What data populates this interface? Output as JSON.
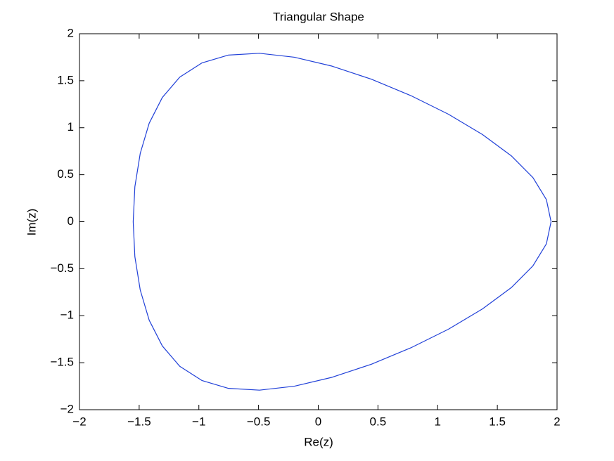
{
  "chart_data": {
    "type": "line",
    "title": "Triangular Shape",
    "x_label": "Re(z)",
    "y_label": "Im(z)",
    "x": [
      1.95,
      1.911,
      1.798,
      1.616,
      1.375,
      1.09,
      0.775,
      0.445,
      0.116,
      -0.2,
      -0.492,
      -0.752,
      -0.975,
      -1.16,
      -1.306,
      -1.416,
      -1.491,
      -1.536,
      -1.55,
      -1.536,
      -1.491,
      -1.416,
      -1.306,
      -1.16,
      -0.975,
      -0.752,
      -0.492,
      -0.2,
      0.116,
      0.445,
      0.775,
      1.09,
      1.375,
      1.616,
      1.798,
      1.911,
      1.95
    ],
    "series": [
      {
        "color": "#2040d8",
        "values": [
          0,
          0.235,
          0.47,
          0.702,
          0.928,
          1.144,
          1.342,
          1.516,
          1.655,
          1.75,
          1.792,
          1.773,
          1.689,
          1.538,
          1.322,
          1.048,
          0.727,
          0.372,
          0,
          -0.372,
          -0.727,
          -1.048,
          -1.322,
          -1.538,
          -1.689,
          -1.773,
          -1.792,
          -1.75,
          -1.655,
          -1.516,
          -1.342,
          -1.144,
          -0.928,
          -0.702,
          -0.47,
          -0.235,
          0
        ]
      }
    ],
    "xlim": [
      -2,
      2
    ],
    "ylim": [
      -2,
      2
    ],
    "xticks": [
      {
        "value": -2,
        "label": "−2"
      },
      {
        "value": -1.5,
        "label": "−1.5"
      },
      {
        "value": -1,
        "label": "−1"
      },
      {
        "value": -0.5,
        "label": "−0.5"
      },
      0,
      0.5,
      1,
      1.5,
      2
    ],
    "yticks": [
      {
        "value": -2,
        "label": "−2"
      },
      {
        "value": -1.5,
        "label": "−1.5"
      },
      {
        "value": -1,
        "label": "−1"
      },
      {
        "value": -0.5,
        "label": "−0.5"
      },
      0,
      0.5,
      1,
      1.5,
      2
    ],
    "grid": false
  }
}
